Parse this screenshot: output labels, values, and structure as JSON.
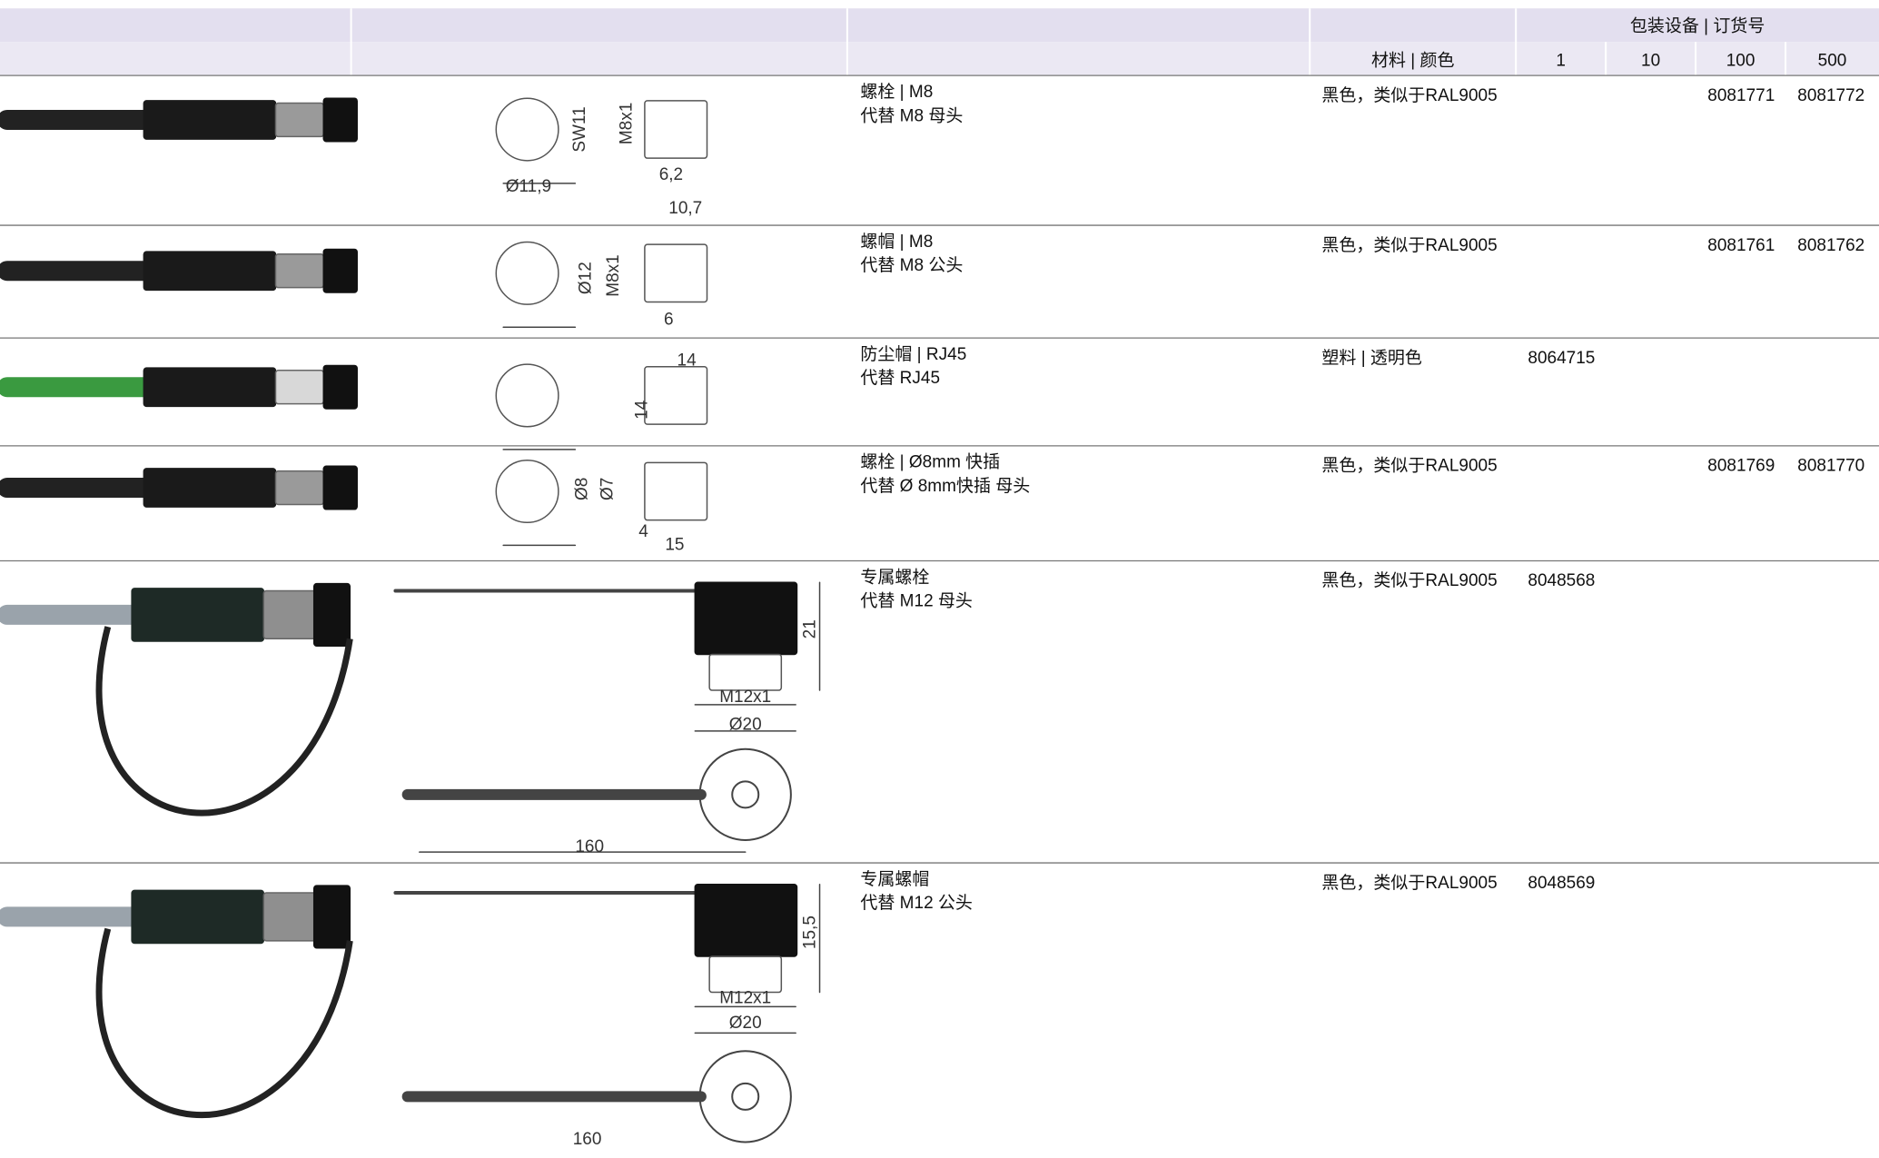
{
  "header": {
    "group": "包装设备 | 订货号",
    "material": "材料 | 颜色",
    "quantities": [
      "1",
      "10",
      "100",
      "500"
    ]
  },
  "rows": [
    {
      "title": "螺栓 | M8",
      "subtitle": "代替 M8 母头",
      "material": "黑色，类似于RAL9005",
      "orders": [
        null,
        null,
        "8081771",
        "8081772"
      ],
      "dimensions": [
        "SW11",
        "M8x1",
        "Ø11,9",
        "6,2",
        "10,7"
      ]
    },
    {
      "title": "螺帽 | M8",
      "subtitle": "代替 M8 公头",
      "material": "黑色，类似于RAL9005",
      "orders": [
        null,
        null,
        "8081761",
        "8081762"
      ],
      "dimensions": [
        "Ø12",
        "M8x1",
        "6"
      ]
    },
    {
      "title": "防尘帽 | RJ45",
      "subtitle": "代替 RJ45",
      "material": "塑料 | 透明色",
      "orders": [
        "8064715",
        null,
        null,
        null
      ],
      "dimensions": [
        "14",
        "14"
      ]
    },
    {
      "title": "螺栓 | Ø8mm 快插",
      "subtitle": "代替 Ø 8mm快插 母头",
      "material": "黑色，类似于RAL9005",
      "orders": [
        null,
        null,
        "8081769",
        "8081770"
      ],
      "dimensions": [
        "Ø8",
        "Ø7",
        "4",
        "15"
      ]
    },
    {
      "title": "专属螺栓",
      "subtitle": "代替 M12 母头",
      "material": "黑色，类似于RAL9005",
      "orders": [
        "8048568",
        null,
        null,
        null
      ],
      "dimensions": [
        "21",
        "M12x1",
        "Ø20",
        "160"
      ]
    },
    {
      "title": "专属螺帽",
      "subtitle": "代替 M12 公头",
      "material": "黑色，类似于RAL9005",
      "orders": [
        "8048569",
        null,
        null,
        null
      ],
      "dimensions": [
        "15,5",
        "M12x1",
        "Ø20",
        "160"
      ]
    }
  ]
}
